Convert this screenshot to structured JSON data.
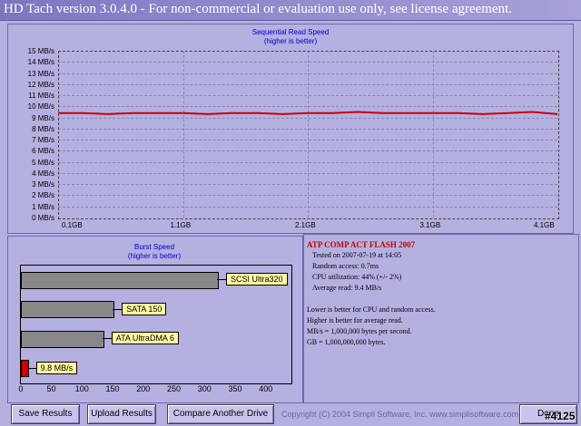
{
  "window": {
    "title": "HD Tach version 3.0.4.0  - For non-commercial or evaluation use only, see license agreement."
  },
  "seq_chart": {
    "title": "Sequential Read Speed",
    "subtitle": "(higher is better)"
  },
  "burst_chart": {
    "title": "Burst Speed",
    "subtitle": "(higher is better)"
  },
  "chart_data": [
    {
      "type": "line",
      "title": "Sequential Read Speed",
      "subtitle": "(higher is better)",
      "ylim": [
        0,
        15
      ],
      "yticks": [
        "15 MB/s",
        "14 MB/s",
        "13 MB/s",
        "12 MB/s",
        "11 MB/s",
        "10 MB/s",
        "9 MB/s",
        "8 MB/s",
        "7 MB/s",
        "6 MB/s",
        "5 MB/s",
        "4 MB/s",
        "3 MB/s",
        "2 MB/s",
        "1 MB/s",
        "0 MB/s"
      ],
      "xticks": [
        "0.1GB",
        "1.1GB",
        "2.1GB",
        "3.1GB",
        "4.1GB"
      ],
      "xlim": [
        0.1,
        4.1
      ],
      "grid": true,
      "series": [
        {
          "color": "#cc0000",
          "x": [
            0.1,
            0.3,
            0.5,
            0.7,
            0.9,
            1.1,
            1.3,
            1.5,
            1.7,
            1.9,
            2.1,
            2.3,
            2.5,
            2.7,
            2.9,
            3.1,
            3.3,
            3.5,
            3.7,
            3.9,
            4.1
          ],
          "y": [
            9.4,
            9.4,
            9.3,
            9.4,
            9.4,
            9.4,
            9.3,
            9.4,
            9.4,
            9.3,
            9.4,
            9.4,
            9.5,
            9.4,
            9.4,
            9.4,
            9.4,
            9.3,
            9.4,
            9.5,
            9.3
          ]
        }
      ]
    },
    {
      "type": "bar",
      "title": "Burst Speed",
      "subtitle": "(higher is better)",
      "orientation": "horizontal",
      "xlim": [
        0,
        400
      ],
      "xticks": [
        "0",
        "50",
        "100",
        "150",
        "200",
        "250",
        "300",
        "350",
        "400"
      ],
      "bars": [
        {
          "label": "SCSI Ultra320",
          "value": 320,
          "color": "#888888"
        },
        {
          "label": "SATA 150",
          "value": 150,
          "color": "#888888"
        },
        {
          "label": "ATA UltraDMA 6",
          "value": 133,
          "color": "#888888"
        },
        {
          "label": "9.8 MB/s",
          "value": 9.8,
          "color": "#cc0000"
        }
      ]
    }
  ],
  "info": {
    "device": "ATP COMP ACT FLASH 2007",
    "tested": "Tested on 2007-07-19 at 14:05",
    "random_access": "Random access: 0.7ms",
    "cpu": "CPU utilization: 44% (+/- 2%)",
    "avg_read": "Average read: 9.4 MB/s",
    "note1": "Lower is better for CPU and random access.",
    "note2": "Higher is better for average read.",
    "note3": "MB/s = 1,000,000 bytes per second.",
    "note4": "GB = 1,000,000,000 bytes."
  },
  "buttons": {
    "save": "Save Results",
    "upload": "Upload Results",
    "compare": "Compare Another Drive",
    "done": "Done"
  },
  "copyright": "Copyright (C) 2004 Simpli Software, Inc. www.simplisoftware.com",
  "watermark": "#4125"
}
